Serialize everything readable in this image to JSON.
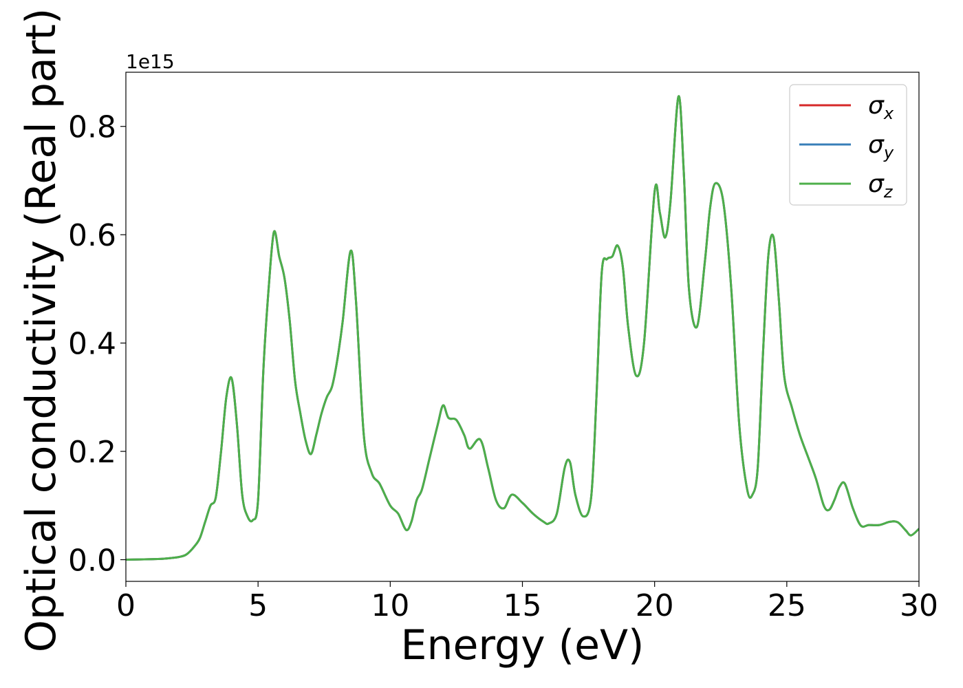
{
  "chart_data": {
    "type": "line",
    "xlabel": "Energy (eV)",
    "ylabel": "Optical conductivity (Real part)",
    "y_offset_label": "1e15",
    "xlim": [
      0,
      30
    ],
    "ylim": [
      -0.04,
      0.9
    ],
    "x_ticks": [
      0,
      5,
      10,
      15,
      20,
      25,
      30
    ],
    "x_tick_labels": [
      "0",
      "5",
      "10",
      "15",
      "20",
      "25",
      "30"
    ],
    "y_ticks": [
      0.0,
      0.2,
      0.4,
      0.6,
      0.8
    ],
    "y_tick_labels": [
      "0.0",
      "0.2",
      "0.4",
      "0.6",
      "0.8"
    ],
    "grid": false,
    "legend_position": "top-right",
    "x": [
      0,
      1,
      1.5,
      2,
      2.3,
      2.6,
      2.8,
      3.0,
      3.2,
      3.4,
      3.6,
      3.8,
      4.0,
      4.2,
      4.4,
      4.6,
      4.8,
      5.0,
      5.2,
      5.4,
      5.6,
      5.8,
      6.0,
      6.2,
      6.4,
      6.6,
      6.8,
      7.0,
      7.2,
      7.4,
      7.6,
      7.8,
      8.0,
      8.2,
      8.5,
      8.7,
      9.0,
      9.3,
      9.6,
      10.0,
      10.3,
      10.6,
      10.8,
      11.0,
      11.2,
      11.5,
      11.8,
      12.0,
      12.2,
      12.5,
      12.8,
      13.0,
      13.4,
      13.7,
      14.0,
      14.3,
      14.6,
      15.0,
      15.4,
      15.8,
      16.0,
      16.3,
      16.6,
      16.8,
      17.0,
      17.3,
      17.6,
      17.8,
      18.0,
      18.2,
      18.4,
      18.6,
      18.8,
      19.0,
      19.3,
      19.6,
      20.0,
      20.2,
      20.4,
      20.6,
      20.9,
      21.1,
      21.3,
      21.6,
      21.9,
      22.1,
      22.3,
      22.6,
      22.9,
      23.2,
      23.5,
      23.7,
      23.9,
      24.1,
      24.3,
      24.5,
      24.7,
      24.9,
      25.2,
      25.5,
      25.8,
      26.1,
      26.4,
      26.6,
      26.8,
      27.0,
      27.2,
      27.5,
      27.8,
      28.1,
      28.5,
      28.9,
      29.2,
      29.5,
      29.7,
      30.0
    ],
    "series": [
      {
        "name": "x",
        "color": "#d62728",
        "values": [
          0.0,
          0.001,
          0.002,
          0.005,
          0.01,
          0.025,
          0.04,
          0.07,
          0.1,
          0.115,
          0.2,
          0.3,
          0.335,
          0.25,
          0.12,
          0.08,
          0.073,
          0.11,
          0.35,
          0.5,
          0.605,
          0.56,
          0.52,
          0.44,
          0.33,
          0.27,
          0.22,
          0.195,
          0.23,
          0.27,
          0.3,
          0.32,
          0.37,
          0.44,
          0.57,
          0.48,
          0.23,
          0.16,
          0.14,
          0.1,
          0.085,
          0.055,
          0.07,
          0.11,
          0.13,
          0.19,
          0.25,
          0.285,
          0.262,
          0.258,
          0.23,
          0.205,
          0.222,
          0.17,
          0.11,
          0.095,
          0.12,
          0.105,
          0.085,
          0.07,
          0.067,
          0.085,
          0.17,
          0.18,
          0.12,
          0.08,
          0.115,
          0.3,
          0.53,
          0.555,
          0.56,
          0.58,
          0.54,
          0.43,
          0.34,
          0.4,
          0.68,
          0.64,
          0.595,
          0.66,
          0.855,
          0.72,
          0.5,
          0.43,
          0.55,
          0.65,
          0.695,
          0.66,
          0.5,
          0.25,
          0.13,
          0.12,
          0.17,
          0.38,
          0.56,
          0.595,
          0.48,
          0.34,
          0.28,
          0.23,
          0.19,
          0.15,
          0.1,
          0.092,
          0.11,
          0.135,
          0.14,
          0.095,
          0.063,
          0.064,
          0.064,
          0.07,
          0.069,
          0.054,
          0.045,
          0.057
        ]
      },
      {
        "name": "y",
        "color": "#377eb8",
        "values": [
          0.0,
          0.001,
          0.002,
          0.005,
          0.01,
          0.025,
          0.04,
          0.07,
          0.1,
          0.115,
          0.2,
          0.3,
          0.335,
          0.25,
          0.12,
          0.08,
          0.073,
          0.11,
          0.35,
          0.5,
          0.605,
          0.56,
          0.52,
          0.44,
          0.33,
          0.27,
          0.22,
          0.195,
          0.23,
          0.27,
          0.3,
          0.32,
          0.37,
          0.44,
          0.57,
          0.48,
          0.23,
          0.16,
          0.14,
          0.1,
          0.085,
          0.055,
          0.07,
          0.11,
          0.13,
          0.19,
          0.25,
          0.285,
          0.262,
          0.258,
          0.23,
          0.205,
          0.222,
          0.17,
          0.11,
          0.095,
          0.12,
          0.105,
          0.085,
          0.07,
          0.067,
          0.085,
          0.17,
          0.18,
          0.12,
          0.08,
          0.115,
          0.3,
          0.53,
          0.555,
          0.56,
          0.58,
          0.54,
          0.43,
          0.34,
          0.4,
          0.68,
          0.64,
          0.595,
          0.66,
          0.855,
          0.72,
          0.5,
          0.43,
          0.55,
          0.65,
          0.695,
          0.66,
          0.5,
          0.25,
          0.13,
          0.12,
          0.17,
          0.38,
          0.56,
          0.595,
          0.48,
          0.34,
          0.28,
          0.23,
          0.19,
          0.15,
          0.1,
          0.092,
          0.11,
          0.135,
          0.14,
          0.095,
          0.063,
          0.064,
          0.064,
          0.07,
          0.069,
          0.054,
          0.045,
          0.057
        ]
      },
      {
        "name": "z",
        "color": "#4daf4a",
        "values": [
          0.0,
          0.001,
          0.002,
          0.005,
          0.01,
          0.025,
          0.04,
          0.07,
          0.1,
          0.115,
          0.2,
          0.3,
          0.335,
          0.25,
          0.12,
          0.08,
          0.073,
          0.11,
          0.35,
          0.5,
          0.605,
          0.56,
          0.52,
          0.44,
          0.33,
          0.27,
          0.22,
          0.195,
          0.23,
          0.27,
          0.3,
          0.32,
          0.37,
          0.44,
          0.57,
          0.48,
          0.23,
          0.16,
          0.14,
          0.1,
          0.085,
          0.055,
          0.07,
          0.11,
          0.13,
          0.19,
          0.25,
          0.285,
          0.262,
          0.258,
          0.23,
          0.205,
          0.222,
          0.17,
          0.11,
          0.095,
          0.12,
          0.105,
          0.085,
          0.07,
          0.067,
          0.085,
          0.17,
          0.18,
          0.12,
          0.08,
          0.115,
          0.3,
          0.53,
          0.555,
          0.56,
          0.58,
          0.54,
          0.43,
          0.34,
          0.4,
          0.68,
          0.64,
          0.595,
          0.66,
          0.855,
          0.72,
          0.5,
          0.43,
          0.55,
          0.65,
          0.695,
          0.66,
          0.5,
          0.25,
          0.13,
          0.12,
          0.17,
          0.38,
          0.56,
          0.595,
          0.48,
          0.34,
          0.28,
          0.23,
          0.19,
          0.15,
          0.1,
          0.092,
          0.11,
          0.135,
          0.14,
          0.095,
          0.063,
          0.064,
          0.064,
          0.07,
          0.069,
          0.054,
          0.045,
          0.057
        ]
      }
    ],
    "legend": [
      {
        "symbol": "σ",
        "sub": "x",
        "color": "#d62728"
      },
      {
        "symbol": "σ",
        "sub": "y",
        "color": "#377eb8"
      },
      {
        "symbol": "σ",
        "sub": "z",
        "color": "#4daf4a"
      }
    ]
  }
}
